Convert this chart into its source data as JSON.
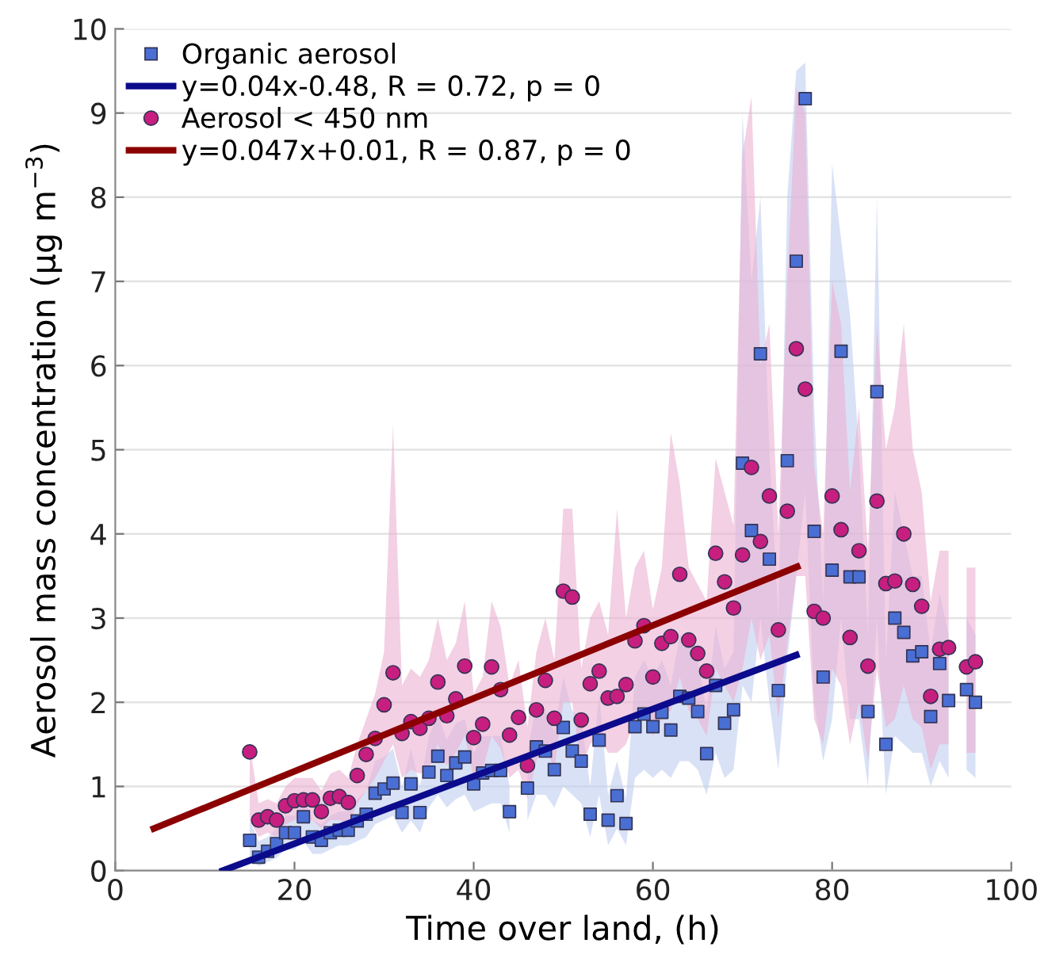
{
  "chart_data": {
    "type": "scatter",
    "xlabel": "Time over land, (h)",
    "ylabel": "Aerosol mass concentration (μg m$^{−3}$)",
    "x": [
      15,
      16,
      17,
      18,
      19,
      20,
      21,
      22,
      23,
      24,
      25,
      26,
      27,
      28,
      29,
      30,
      31,
      32,
      33,
      34,
      35,
      36,
      37,
      38,
      39,
      40,
      41,
      42,
      43,
      44,
      45,
      46,
      47,
      48,
      49,
      50,
      51,
      52,
      53,
      54,
      55,
      56,
      57,
      58,
      59,
      60,
      61,
      62,
      63,
      64,
      65,
      66,
      67,
      68,
      69,
      70,
      71,
      72,
      73,
      74,
      75,
      76,
      77,
      78,
      79,
      80,
      81,
      82,
      83,
      84,
      85,
      86,
      87,
      88,
      89,
      90,
      91,
      92,
      93,
      94,
      95,
      96
    ],
    "series": [
      {
        "name": "Organic aerosol",
        "marker": "square",
        "color": "#4a6fd4",
        "values": [
          0.36,
          0.16,
          0.23,
          0.32,
          0.45,
          0.45,
          0.64,
          0.4,
          0.36,
          0.45,
          0.48,
          0.48,
          0.59,
          0.67,
          0.92,
          0.97,
          1.04,
          0.69,
          1.03,
          0.69,
          1.17,
          1.36,
          1.13,
          1.28,
          1.35,
          1.03,
          1.16,
          1.19,
          1.19,
          0.7,
          null,
          0.98,
          1.47,
          1.42,
          1.2,
          1.7,
          1.42,
          1.3,
          0.67,
          1.55,
          0.6,
          0.89,
          0.56,
          1.71,
          1.86,
          1.71,
          1.88,
          1.67,
          2.07,
          2.05,
          1.89,
          1.39,
          2.2,
          1.75,
          1.91,
          4.84,
          4.04,
          6.14,
          3.7,
          2.14,
          4.87,
          7.24,
          9.17,
          4.03,
          2.3,
          3.57,
          6.17,
          3.49,
          3.49,
          1.89,
          5.69,
          1.5,
          3.0,
          2.83,
          2.55,
          2.6,
          1.83,
          2.46,
          2.02,
          null,
          2.15,
          2.0
        ],
        "lower": [
          0.15,
          0.05,
          0.1,
          0.15,
          0.25,
          0.25,
          0.35,
          0.2,
          0.2,
          0.25,
          0.3,
          0.3,
          0.35,
          0.4,
          0.55,
          0.6,
          0.65,
          0.45,
          0.6,
          0.45,
          0.75,
          0.9,
          0.75,
          0.85,
          0.9,
          0.7,
          0.75,
          0.8,
          0.8,
          0.45,
          null,
          0.6,
          0.9,
          0.9,
          0.75,
          1.0,
          0.9,
          0.8,
          0.4,
          0.9,
          0.3,
          0.5,
          0.3,
          1.1,
          1.2,
          1.1,
          1.2,
          1.1,
          1.3,
          1.3,
          1.2,
          0.9,
          1.4,
          1.1,
          1.2,
          2.2,
          2.0,
          3.0,
          2.0,
          1.2,
          2.5,
          3.5,
          4.5,
          2.0,
          1.3,
          1.8,
          3.0,
          1.8,
          1.8,
          1.0,
          3.0,
          0.9,
          1.6,
          1.5,
          1.4,
          1.4,
          1.0,
          1.3,
          1.1,
          null,
          1.2,
          1.1
        ],
        "upper": [
          0.6,
          0.35,
          0.4,
          0.5,
          0.65,
          0.65,
          0.9,
          0.6,
          0.55,
          0.65,
          0.7,
          0.7,
          0.85,
          0.95,
          1.3,
          1.35,
          1.45,
          1.0,
          1.45,
          1.0,
          1.6,
          1.85,
          1.55,
          1.75,
          1.8,
          1.4,
          1.6,
          1.6,
          1.6,
          1.0,
          null,
          1.4,
          2.0,
          1.9,
          1.65,
          2.3,
          1.9,
          1.8,
          1.0,
          2.1,
          0.9,
          1.3,
          0.85,
          2.3,
          2.5,
          2.3,
          2.5,
          2.2,
          2.8,
          2.7,
          2.5,
          1.9,
          2.9,
          2.4,
          2.6,
          9.0,
          7.0,
          8.0,
          5.0,
          3.0,
          8.0,
          9.5,
          9.6,
          5.5,
          3.2,
          8.4,
          7.5,
          6.6,
          5.0,
          2.8,
          8.0,
          2.5,
          4.5,
          4.0,
          3.5,
          3.5,
          2.6,
          3.3,
          2.8,
          null,
          3.0,
          2.8
        ]
      },
      {
        "name": "y=0.04x-0.48, R = 0.72, p = 0",
        "type": "line",
        "color": "#0b0b8c",
        "x": [
          12,
          76
        ],
        "values": [
          0,
          2.56
        ]
      },
      {
        "name": "Aerosol < 450 nm",
        "marker": "circle",
        "color": "#c71f7f",
        "values": [
          1.41,
          0.6,
          0.64,
          0.6,
          0.77,
          0.83,
          0.84,
          0.84,
          0.7,
          0.86,
          0.88,
          0.81,
          1.13,
          1.38,
          1.57,
          1.97,
          2.35,
          1.63,
          1.77,
          1.69,
          1.81,
          2.24,
          1.84,
          2.04,
          2.43,
          1.58,
          1.74,
          2.42,
          2.15,
          1.61,
          1.82,
          1.25,
          1.91,
          2.26,
          1.81,
          3.32,
          3.25,
          1.79,
          2.22,
          2.37,
          2.05,
          2.07,
          2.21,
          2.73,
          2.91,
          2.3,
          2.7,
          2.78,
          3.52,
          2.74,
          2.58,
          2.37,
          3.77,
          3.43,
          3.12,
          3.75,
          4.79,
          3.91,
          4.45,
          2.86,
          4.27,
          6.2,
          5.72,
          3.08,
          3.0,
          4.45,
          4.05,
          2.77,
          3.8,
          2.43,
          4.39,
          3.41,
          3.44,
          4.0,
          3.4,
          3.14,
          2.07,
          2.63,
          2.65,
          null,
          2.42,
          2.48
        ],
        "lower": [
          0.6,
          0.4,
          0.45,
          0.4,
          0.55,
          0.6,
          0.6,
          0.6,
          0.5,
          0.6,
          0.6,
          0.55,
          0.8,
          0.95,
          1.1,
          1.3,
          1.5,
          1.1,
          1.2,
          1.15,
          1.2,
          1.5,
          1.25,
          1.4,
          1.6,
          1.1,
          1.2,
          1.6,
          1.45,
          1.1,
          1.2,
          0.85,
          1.3,
          1.5,
          1.2,
          2.0,
          2.0,
          1.2,
          1.5,
          1.6,
          1.4,
          1.4,
          1.5,
          1.8,
          1.9,
          1.6,
          1.8,
          1.9,
          2.3,
          1.9,
          1.8,
          1.6,
          2.4,
          2.2,
          2.0,
          2.4,
          3.0,
          2.5,
          2.8,
          1.8,
          2.7,
          3.5,
          3.5,
          1.8,
          1.5,
          2.4,
          2.2,
          1.5,
          2.0,
          1.3,
          2.4,
          1.7,
          1.8,
          2.2,
          1.8,
          1.7,
          1.2,
          1.5,
          1.5,
          null,
          1.4,
          1.4
        ],
        "upper": [
          1.5,
          0.8,
          0.85,
          0.8,
          1.0,
          1.1,
          1.1,
          1.1,
          0.95,
          1.15,
          1.2,
          1.1,
          1.5,
          1.8,
          2.1,
          2.6,
          5.3,
          2.2,
          2.4,
          2.3,
          2.5,
          3.0,
          2.5,
          2.7,
          3.2,
          2.1,
          2.3,
          3.2,
          2.9,
          2.2,
          2.5,
          1.7,
          2.6,
          3.0,
          2.5,
          4.3,
          4.3,
          2.4,
          3.0,
          3.2,
          2.8,
          4.3,
          3.0,
          3.6,
          3.8,
          3.1,
          3.6,
          5.2,
          4.6,
          3.6,
          3.4,
          3.2,
          4.9,
          4.5,
          4.1,
          8.5,
          9.2,
          6.0,
          6.5,
          4.0,
          7.0,
          9.3,
          9.0,
          4.8,
          4.0,
          7.0,
          6.5,
          4.5,
          5.5,
          3.8,
          6.5,
          5.0,
          5.5,
          6.5,
          5.0,
          4.5,
          3.2,
          3.8,
          3.8,
          null,
          3.6,
          3.6
        ]
      },
      {
        "name": "y=0.047x+0.01, R = 0.87, p = 0",
        "type": "line",
        "color": "#8b0000",
        "x": [
          4.3,
          76.1
        ],
        "values": [
          0.5,
          3.61
        ]
      }
    ],
    "xlim": [
      0,
      100
    ],
    "ylim": [
      0,
      10
    ],
    "xticks": [
      0,
      20,
      40,
      60,
      80,
      100
    ],
    "yticks": [
      0,
      1,
      2,
      3,
      4,
      5,
      6,
      7,
      8,
      9,
      10
    ],
    "grid": "y",
    "legend": "top left"
  }
}
